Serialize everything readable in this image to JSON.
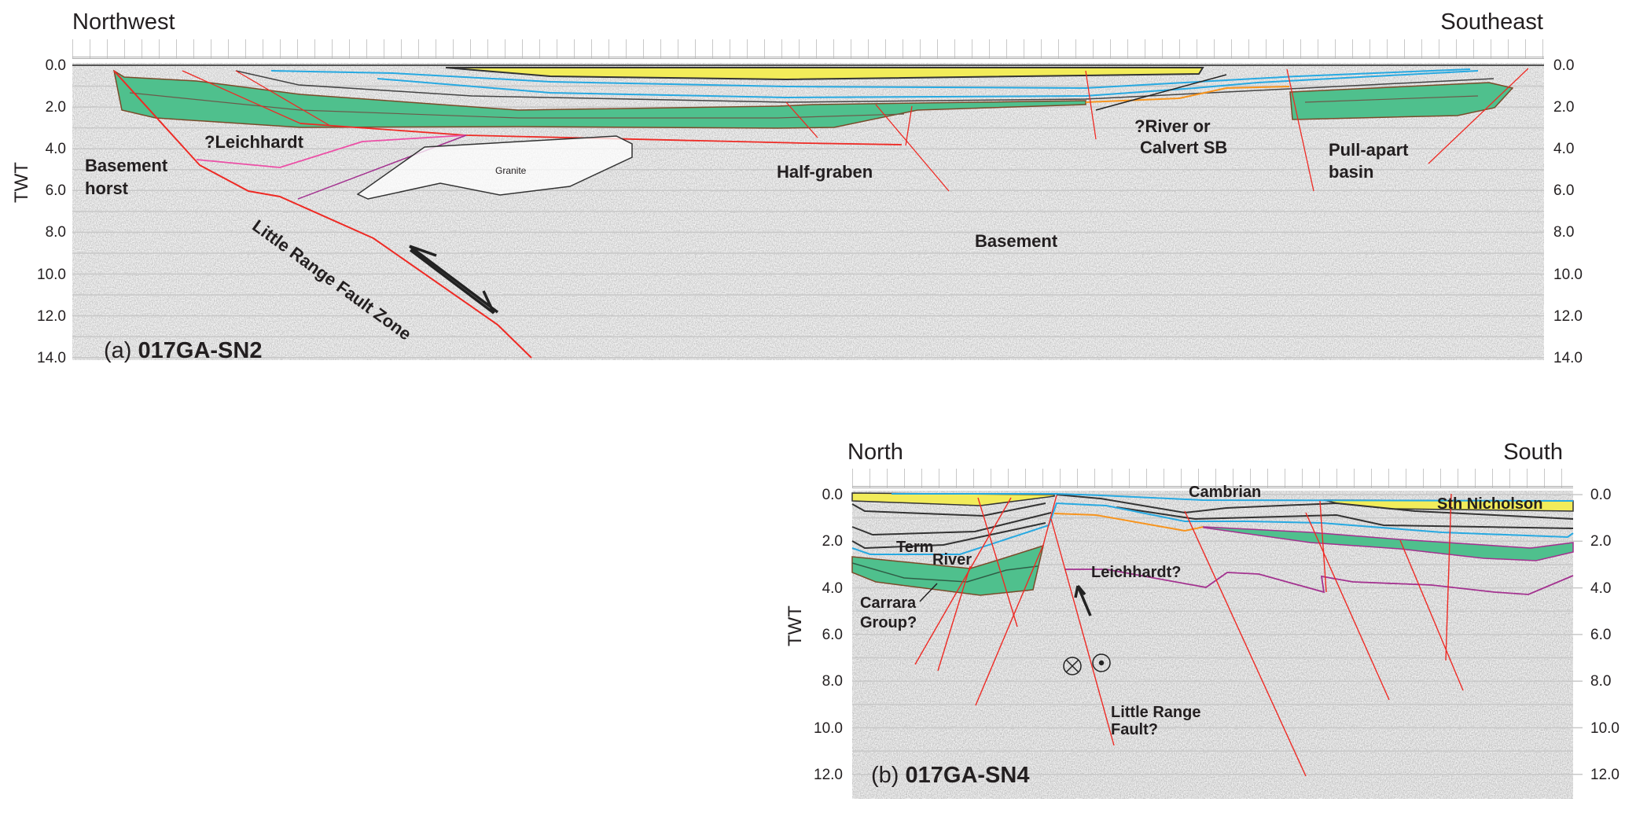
{
  "panel_a": {
    "left_direction": "Northwest",
    "right_direction": "Southeast",
    "axis_label": "TWT",
    "ticks": [
      "0.0",
      "2.0",
      "4.0",
      "6.0",
      "8.0",
      "10.0",
      "12.0",
      "14.0"
    ],
    "panel_letter": "(a)",
    "line_name": "017GA-SN2",
    "labels": {
      "leichhardt": "?Leichhardt",
      "basement_horst_1": "Basement",
      "basement_horst_2": "horst",
      "granite": "Granite",
      "half_graben": "Half-graben",
      "basement": "Basement",
      "river_1": "?River or",
      "river_2": "Calvert SB",
      "pull_apart_1": "Pull-apart",
      "pull_apart_2": "basin",
      "fault_zone": "Little Range Fault Zone"
    }
  },
  "panel_b": {
    "left_direction": "North",
    "right_direction": "South",
    "axis_label": "TWT",
    "ticks": [
      "0.0",
      "2.0",
      "4.0",
      "6.0",
      "8.0",
      "10.0",
      "12.0"
    ],
    "panel_letter": "(b)",
    "line_name": "017GA-SN4",
    "labels": {
      "cambrian": "Cambrian",
      "sth_nicholson": "Sth Nicholson",
      "term": "Term",
      "river": "River",
      "leichhardt": "Leichhardt?",
      "carrara_1": "Carrara",
      "carrara_2": "Group?",
      "fault_1": "Little Range",
      "fault_2": "Fault?"
    }
  },
  "colors": {
    "yellow_unit": "#f2ec5a",
    "green_unit": "#4fc08d",
    "fault": "#ee2a24",
    "blue_horizon": "#27a9e1",
    "orange_horizon": "#f7941d",
    "purple_horizon": "#a3318f",
    "pink_horizon": "#ec4fa6",
    "seismic_background": "#e6e6e6"
  }
}
